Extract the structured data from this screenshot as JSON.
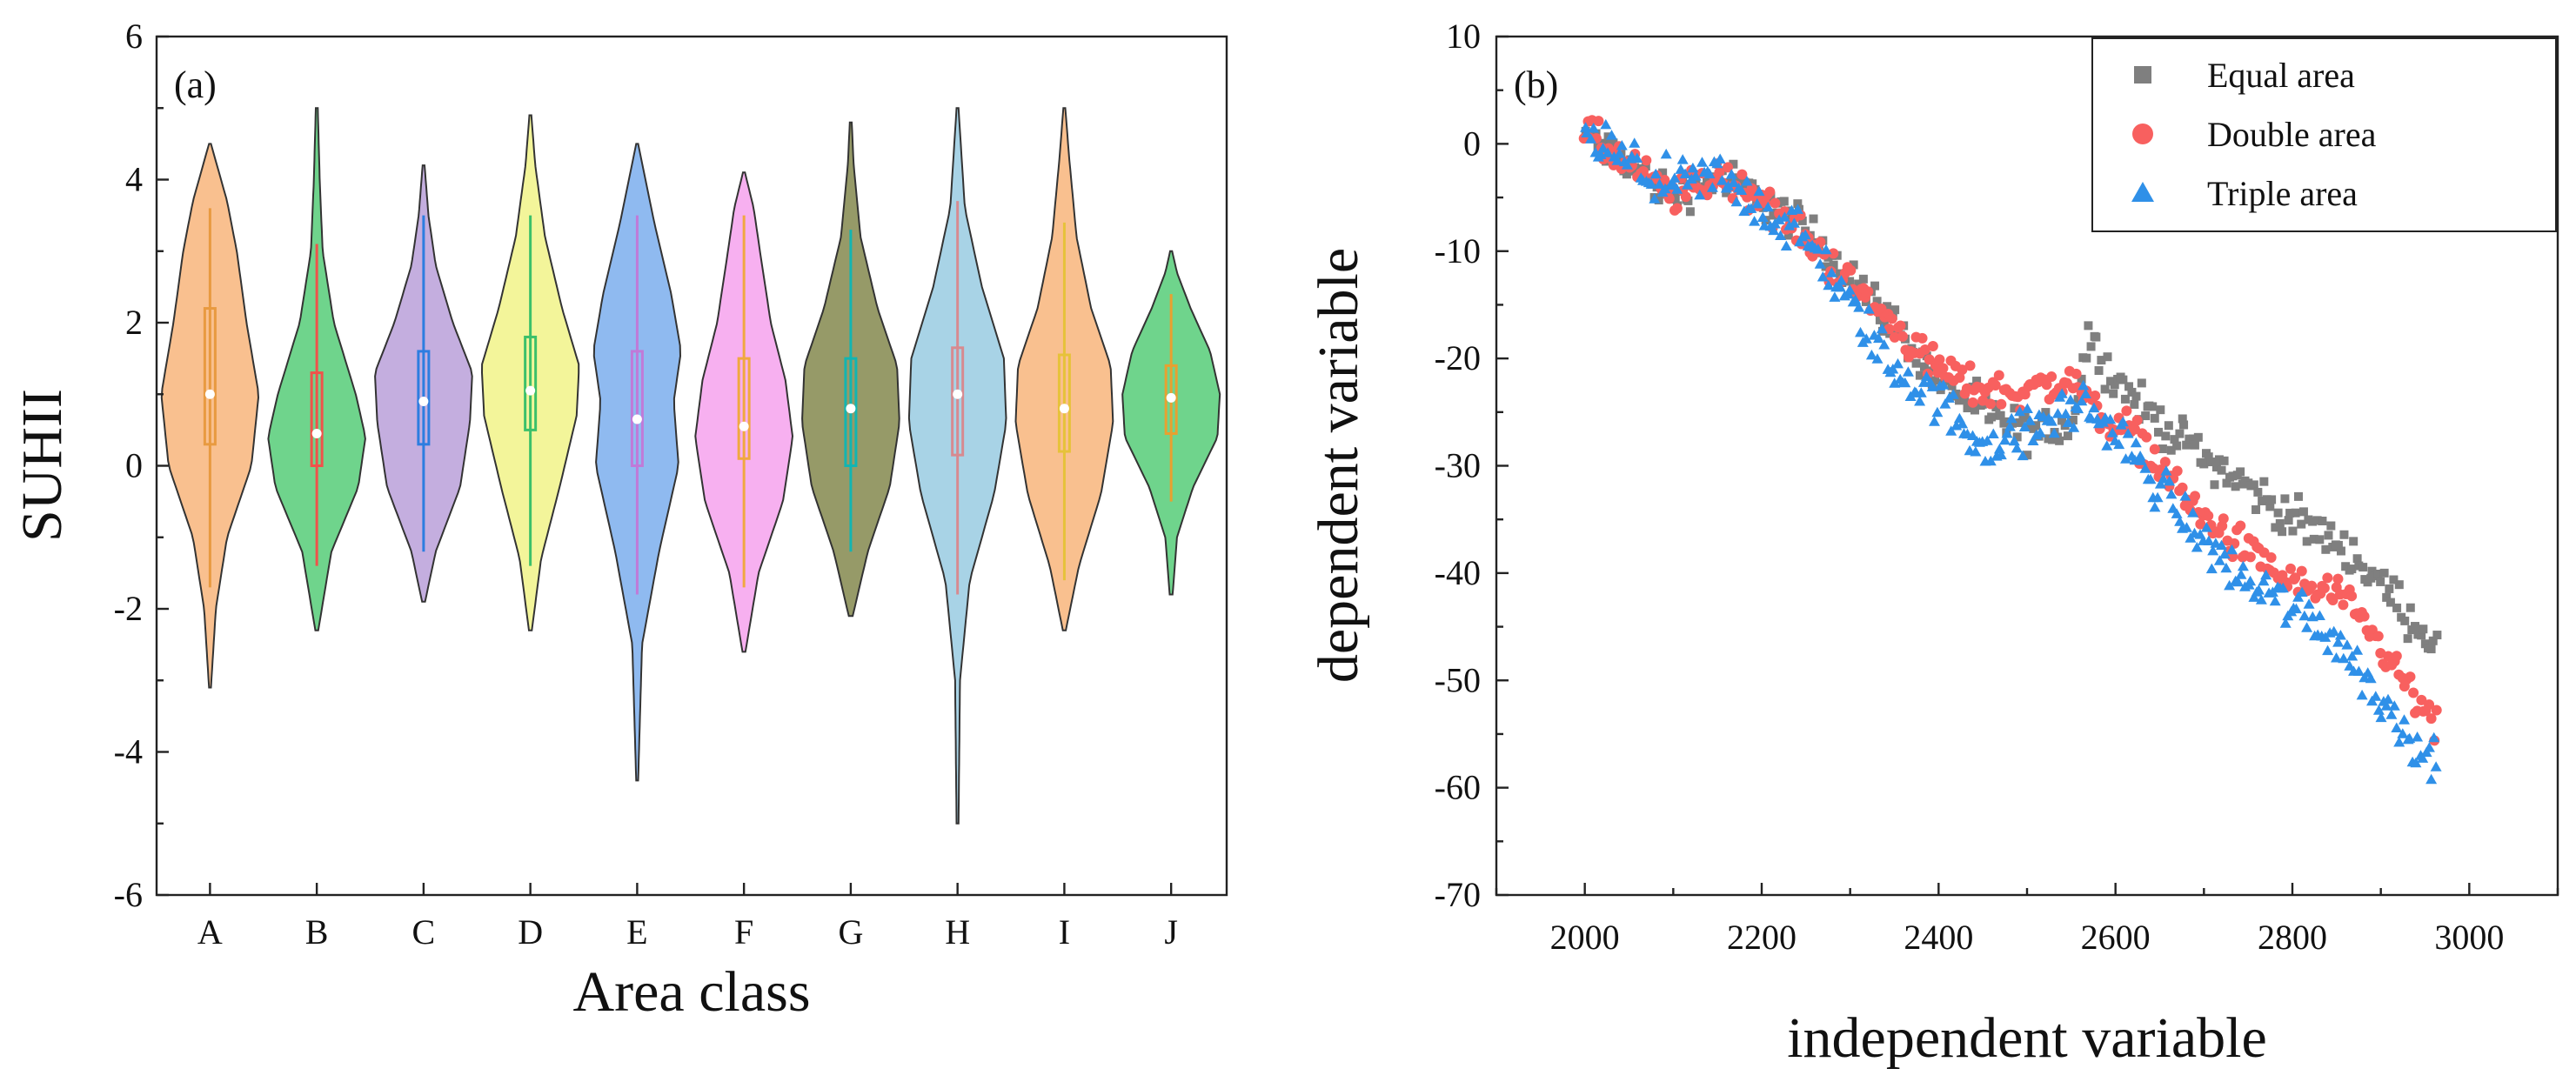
{
  "chart_data": [
    {
      "type": "violin",
      "panel_label": "(a)",
      "title": "",
      "xlabel": "Area class",
      "ylabel": "SUHII",
      "ylim": [
        -6,
        6
      ],
      "yticks": [
        "-6",
        "-4",
        "-2",
        "0",
        "2",
        "4",
        "6"
      ],
      "yticks_values": [
        -6,
        -4,
        -2,
        0,
        2,
        4,
        6
      ],
      "categories": [
        "A",
        "B",
        "C",
        "D",
        "E",
        "F",
        "G",
        "H",
        "I",
        "J"
      ],
      "colors": [
        "#f9c08f",
        "#6fd48c",
        "#c4aedf",
        "#f3f59a",
        "#8fbaf0",
        "#f7b0f0",
        "#969a68",
        "#a8d3e6",
        "#f9c08f",
        "#6fd48c"
      ],
      "box_colors": [
        "#e89a40",
        "#f0524a",
        "#2d7de0",
        "#3cc06a",
        "#c07ad8",
        "#f0a840",
        "#12b5b2",
        "#d78a90",
        "#e6c23a",
        "#e8a030"
      ],
      "distributions": [
        {
          "min": -3.1,
          "max": 4.5,
          "q1": 0.3,
          "median": 1.0,
          "q3": 2.2,
          "whisker_low": -1.7,
          "whisker_high": 3.6,
          "shape": [
            [
              -3.1,
              0.02
            ],
            [
              -2,
              0.12
            ],
            [
              -1,
              0.35
            ],
            [
              0,
              0.85
            ],
            [
              1,
              1.0
            ],
            [
              2,
              0.75
            ],
            [
              3,
              0.55
            ],
            [
              3.7,
              0.35
            ],
            [
              4.5,
              0.02
            ]
          ]
        },
        {
          "min": -2.3,
          "max": 5.0,
          "q1": 0.0,
          "median": 0.45,
          "q3": 1.3,
          "whisker_low": -1.4,
          "whisker_high": 3.1,
          "shape": [
            [
              -2.3,
              0.03
            ],
            [
              -1.2,
              0.3
            ],
            [
              -0.3,
              0.85
            ],
            [
              0.4,
              1.0
            ],
            [
              1.0,
              0.8
            ],
            [
              2,
              0.35
            ],
            [
              3,
              0.12
            ],
            [
              4,
              0.06
            ],
            [
              5,
              0.02
            ]
          ]
        },
        {
          "min": -1.9,
          "max": 4.2,
          "q1": 0.3,
          "median": 0.9,
          "q3": 1.6,
          "whisker_low": -1.2,
          "whisker_high": 3.5,
          "shape": [
            [
              -1.9,
              0.03
            ],
            [
              -1.2,
              0.25
            ],
            [
              -0.3,
              0.75
            ],
            [
              0.6,
              0.95
            ],
            [
              1.3,
              1.0
            ],
            [
              2,
              0.6
            ],
            [
              2.8,
              0.25
            ],
            [
              3.5,
              0.1
            ],
            [
              4.2,
              0.02
            ]
          ]
        },
        {
          "min": -2.3,
          "max": 4.9,
          "q1": 0.5,
          "median": 1.05,
          "q3": 1.8,
          "whisker_low": -1.4,
          "whisker_high": 3.5,
          "shape": [
            [
              -2.3,
              0.03
            ],
            [
              -1.3,
              0.22
            ],
            [
              -0.3,
              0.6
            ],
            [
              0.7,
              0.95
            ],
            [
              1.4,
              1.0
            ],
            [
              2.2,
              0.65
            ],
            [
              3.2,
              0.3
            ],
            [
              4.2,
              0.1
            ],
            [
              4.9,
              0.02
            ]
          ]
        },
        {
          "min": -4.4,
          "max": 4.5,
          "q1": 0.0,
          "median": 0.65,
          "q3": 1.6,
          "whisker_low": -1.8,
          "whisker_high": 3.5,
          "shape": [
            [
              -4.4,
              0.02
            ],
            [
              -2.5,
              0.1
            ],
            [
              -1.2,
              0.45
            ],
            [
              0,
              0.85
            ],
            [
              0.9,
              0.75
            ],
            [
              1.6,
              0.9
            ],
            [
              2.4,
              0.7
            ],
            [
              3.4,
              0.35
            ],
            [
              4.5,
              0.02
            ]
          ]
        },
        {
          "min": -2.6,
          "max": 4.1,
          "q1": 0.1,
          "median": 0.55,
          "q3": 1.5,
          "whisker_low": -1.7,
          "whisker_high": 3.5,
          "shape": [
            [
              -2.6,
              0.03
            ],
            [
              -1.5,
              0.3
            ],
            [
              -0.5,
              0.8
            ],
            [
              0.4,
              1.0
            ],
            [
              1.2,
              0.85
            ],
            [
              2,
              0.55
            ],
            [
              2.9,
              0.35
            ],
            [
              3.6,
              0.2
            ],
            [
              4.1,
              0.02
            ]
          ]
        },
        {
          "min": -2.1,
          "max": 4.8,
          "q1": 0.0,
          "median": 0.8,
          "q3": 1.5,
          "whisker_low": -1.2,
          "whisker_high": 3.3,
          "shape": [
            [
              -2.1,
              0.04
            ],
            [
              -1.2,
              0.35
            ],
            [
              -0.3,
              0.8
            ],
            [
              0.6,
              1.0
            ],
            [
              1.4,
              0.95
            ],
            [
              2.2,
              0.55
            ],
            [
              3.2,
              0.2
            ],
            [
              4.2,
              0.06
            ],
            [
              4.8,
              0.02
            ]
          ]
        },
        {
          "min": -5.0,
          "max": 5.0,
          "q1": 0.15,
          "median": 1.0,
          "q3": 1.65,
          "whisker_low": -1.8,
          "whisker_high": 3.7,
          "shape": [
            [
              -5,
              0.02
            ],
            [
              -3,
              0.05
            ],
            [
              -1.6,
              0.25
            ],
            [
              -0.4,
              0.75
            ],
            [
              0.6,
              1.0
            ],
            [
              1.5,
              0.95
            ],
            [
              2.5,
              0.5
            ],
            [
              3.6,
              0.15
            ],
            [
              5,
              0.02
            ]
          ]
        },
        {
          "min": -2.3,
          "max": 5.0,
          "q1": 0.2,
          "median": 0.8,
          "q3": 1.55,
          "whisker_low": -1.6,
          "whisker_high": 3.4,
          "shape": [
            [
              -2.3,
              0.03
            ],
            [
              -1.4,
              0.3
            ],
            [
              -0.4,
              0.75
            ],
            [
              0.6,
              1.0
            ],
            [
              1.4,
              0.95
            ],
            [
              2.2,
              0.55
            ],
            [
              3.2,
              0.25
            ],
            [
              4.3,
              0.1
            ],
            [
              5,
              0.02
            ]
          ]
        },
        {
          "min": -1.8,
          "max": 3.0,
          "q1": 0.45,
          "median": 0.95,
          "q3": 1.4,
          "whisker_low": -0.5,
          "whisker_high": 2.4,
          "shape": [
            [
              -1.8,
              0.03
            ],
            [
              -1,
              0.12
            ],
            [
              -0.3,
              0.45
            ],
            [
              0.4,
              0.95
            ],
            [
              1.0,
              1.0
            ],
            [
              1.6,
              0.8
            ],
            [
              2.2,
              0.4
            ],
            [
              2.7,
              0.12
            ],
            [
              3,
              0.02
            ]
          ]
        }
      ]
    },
    {
      "type": "scatter",
      "panel_label": "(b)",
      "title": "",
      "xlabel": "independent variable",
      "ylabel": "dependent variable",
      "xlim": [
        1900,
        3100
      ],
      "ylim": [
        -70,
        10
      ],
      "xticks": [
        "2000",
        "2200",
        "2400",
        "2600",
        "2800",
        "3000"
      ],
      "xticks_values": [
        2000,
        2200,
        2400,
        2600,
        2800,
        3000
      ],
      "yticks": [
        "10",
        "0",
        "-10",
        "-20",
        "-30",
        "-40",
        "-50",
        "-60",
        "-70"
      ],
      "yticks_values": [
        10,
        0,
        -10,
        -20,
        -30,
        -40,
        -50,
        -60,
        -70
      ],
      "legend_position": "top-right",
      "series": [
        {
          "name": "Equal area",
          "marker": "square",
          "color": "#7f7f7f",
          "x_range": [
            2000,
            2965
          ],
          "trend": [
            [
              2000,
              1
            ],
            [
              2050,
              -2
            ],
            [
              2100,
              -5
            ],
            [
              2150,
              -3
            ],
            [
              2200,
              -5
            ],
            [
              2250,
              -8
            ],
            [
              2300,
              -12
            ],
            [
              2350,
              -17
            ],
            [
              2400,
              -22
            ],
            [
              2450,
              -25
            ],
            [
              2500,
              -27
            ],
            [
              2550,
              -26
            ],
            [
              2570,
              -18
            ],
            [
              2600,
              -22
            ],
            [
              2650,
              -26
            ],
            [
              2700,
              -29
            ],
            [
              2750,
              -32
            ],
            [
              2800,
              -35
            ],
            [
              2850,
              -37
            ],
            [
              2900,
              -41
            ],
            [
              2965,
              -47
            ]
          ],
          "noise": 1.6
        },
        {
          "name": "Double area",
          "marker": "circle",
          "color": "#f8605f",
          "x_range": [
            2000,
            2965
          ],
          "trend": [
            [
              2000,
              1
            ],
            [
              2050,
              -2
            ],
            [
              2100,
              -5
            ],
            [
              2150,
              -3
            ],
            [
              2200,
              -5
            ],
            [
              2250,
              -9
            ],
            [
              2300,
              -13
            ],
            [
              2350,
              -17
            ],
            [
              2400,
              -21
            ],
            [
              2450,
              -23
            ],
            [
              2500,
              -23
            ],
            [
              2550,
              -22
            ],
            [
              2580,
              -25
            ],
            [
              2620,
              -27
            ],
            [
              2660,
              -31
            ],
            [
              2700,
              -35
            ],
            [
              2750,
              -38
            ],
            [
              2800,
              -41
            ],
            [
              2850,
              -42
            ],
            [
              2900,
              -47
            ],
            [
              2965,
              -55
            ]
          ],
          "noise": 1.5
        },
        {
          "name": "Triple area",
          "marker": "triangle",
          "color": "#2f90e8",
          "x_range": [
            2000,
            2965
          ],
          "trend": [
            [
              2000,
              1
            ],
            [
              2050,
              -2
            ],
            [
              2100,
              -4
            ],
            [
              2150,
              -3
            ],
            [
              2200,
              -6
            ],
            [
              2250,
              -9
            ],
            [
              2300,
              -15
            ],
            [
              2350,
              -21
            ],
            [
              2400,
              -24
            ],
            [
              2450,
              -28
            ],
            [
              2500,
              -27
            ],
            [
              2560,
              -24
            ],
            [
              2600,
              -27
            ],
            [
              2650,
              -32
            ],
            [
              2700,
              -37
            ],
            [
              2750,
              -41
            ],
            [
              2800,
              -43
            ],
            [
              2850,
              -46
            ],
            [
              2900,
              -52
            ],
            [
              2965,
              -58
            ]
          ],
          "noise": 1.9
        }
      ]
    }
  ]
}
